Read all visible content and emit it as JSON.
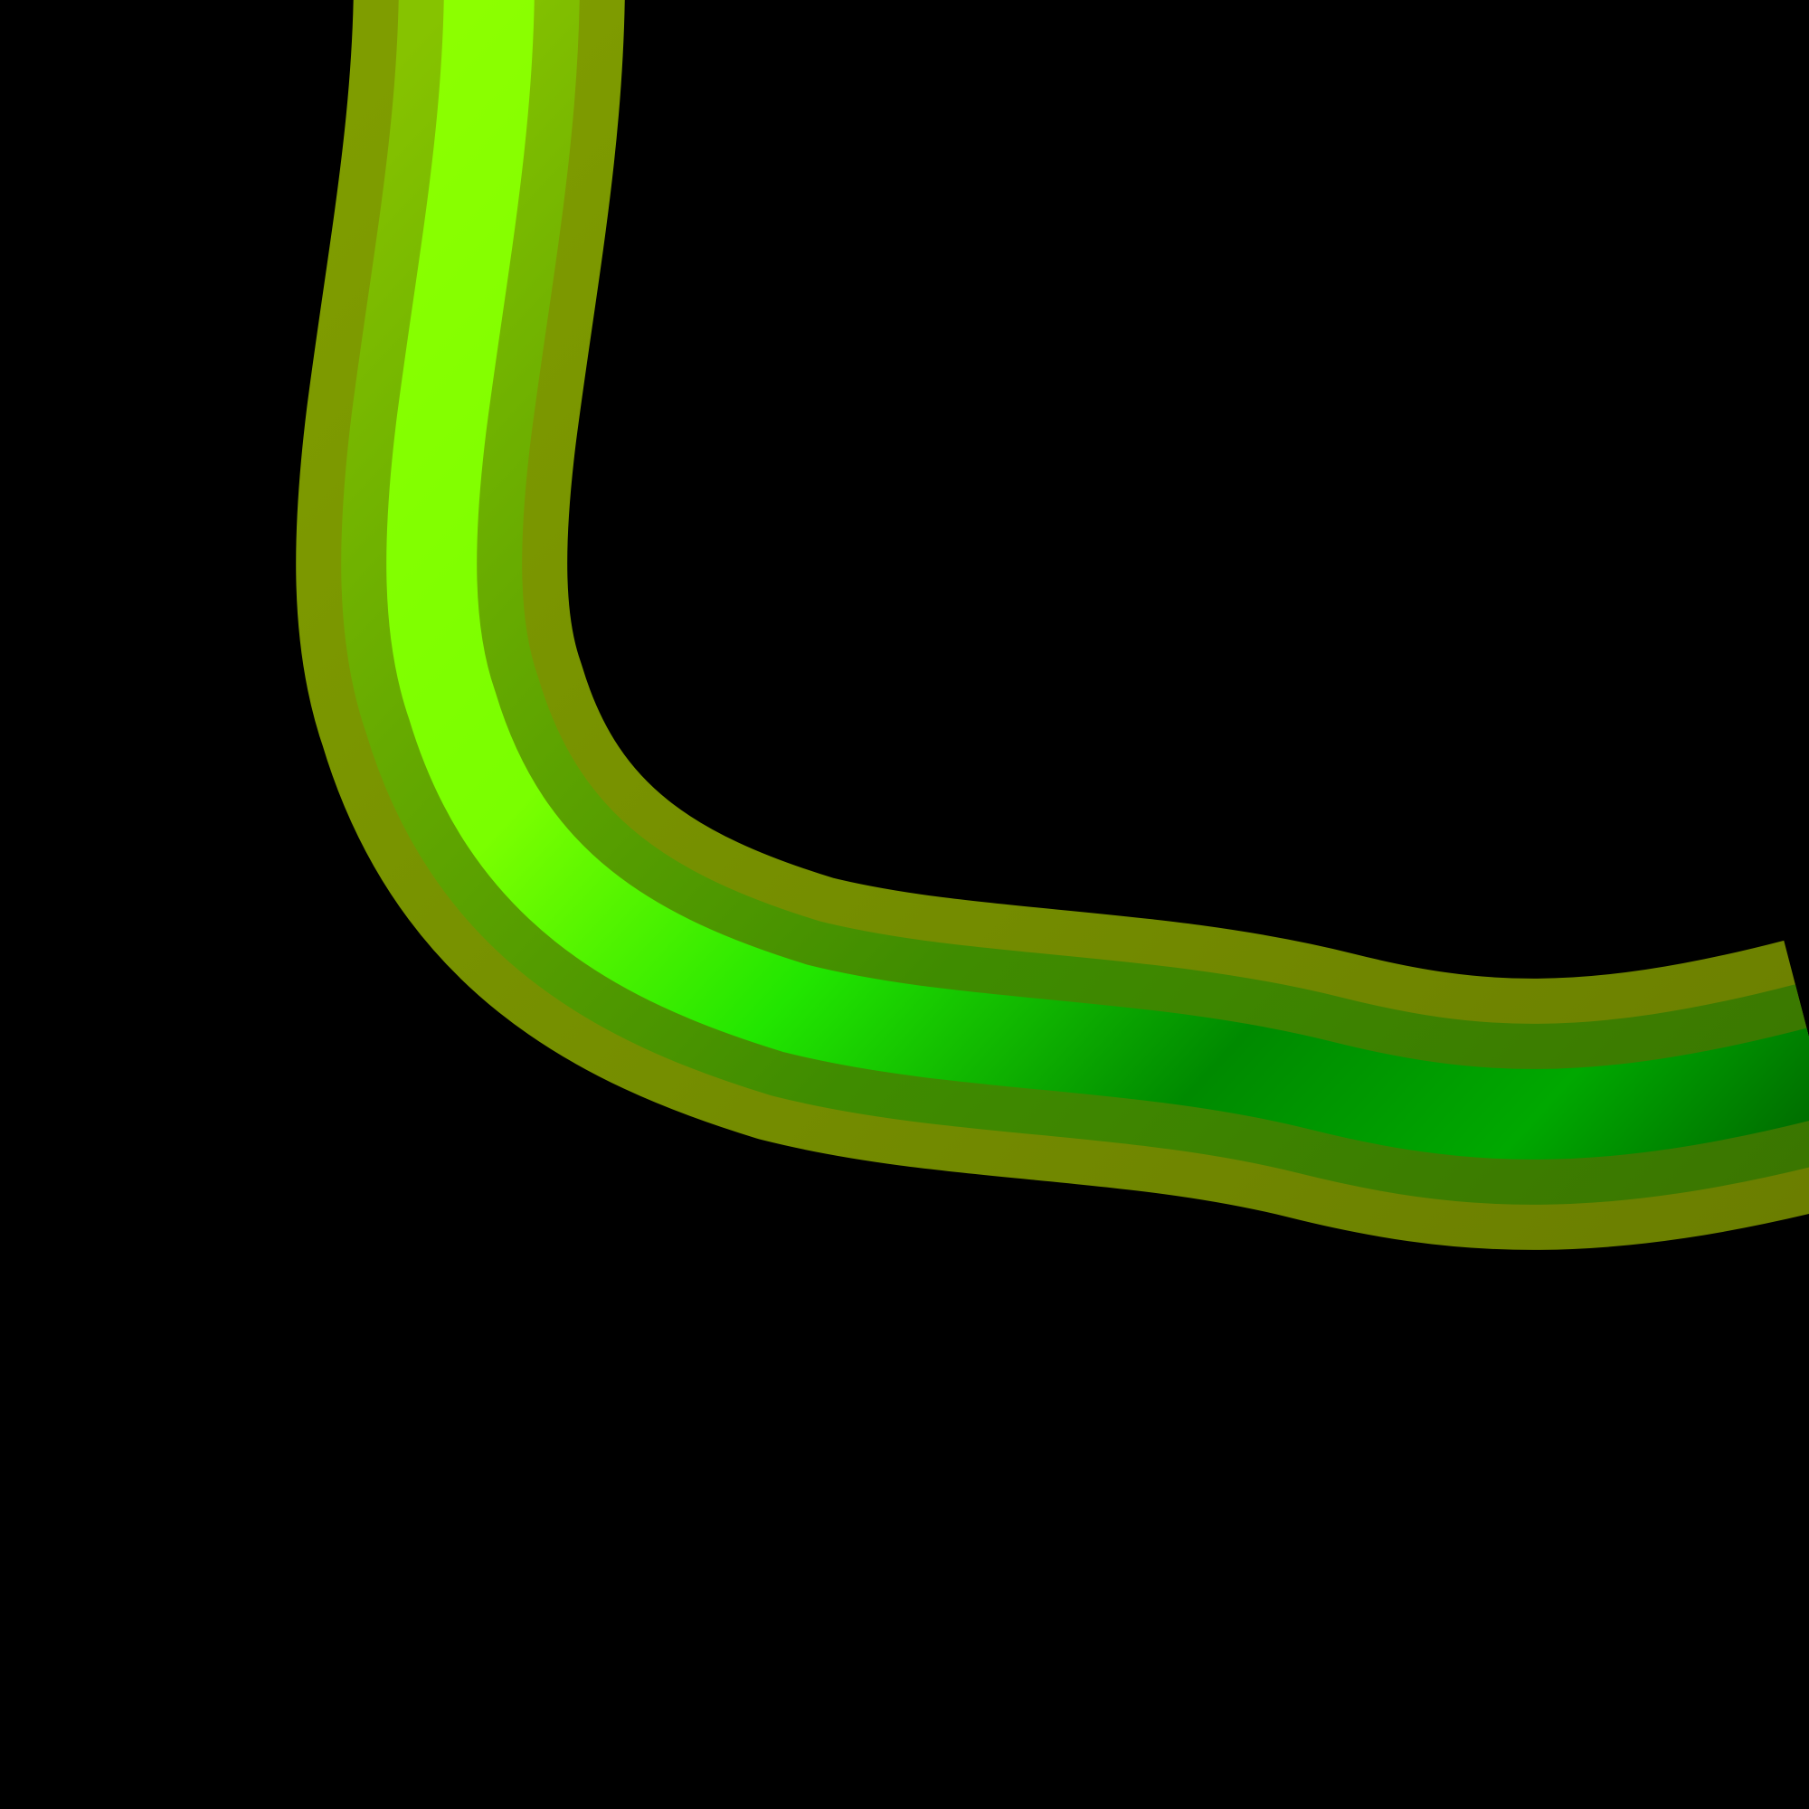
{
  "scene": {
    "background": "#000000",
    "tube": {
      "outer_edge_color": "#7f9d00",
      "mid_band_color_top": "#86c300",
      "mid_band_color_bottom": "#3f8c00",
      "core_color_top": "#8cff00",
      "core_color_mid": "#22e600",
      "core_color_bottom": "#008a00",
      "core_color_end": "#005c00"
    }
  }
}
